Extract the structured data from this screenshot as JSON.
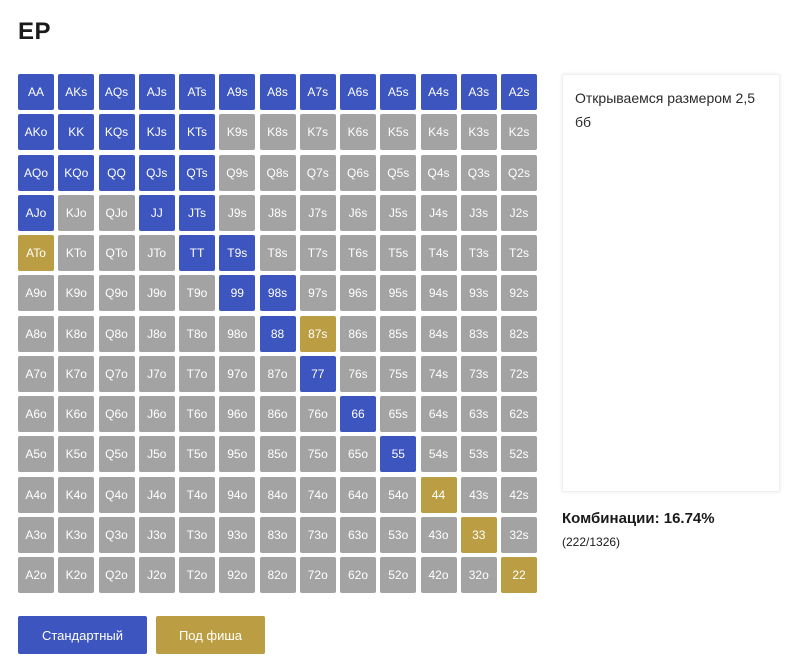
{
  "page": {
    "title": "EP"
  },
  "colors": {
    "raise": "#3d55be",
    "short_stack": "#bb9e43",
    "fold": "#a3a3a3"
  },
  "grid": {
    "rows": [
      [
        [
          "AA",
          "raise"
        ],
        [
          "AKs",
          "raise"
        ],
        [
          "AQs",
          "raise"
        ],
        [
          "AJs",
          "raise"
        ],
        [
          "ATs",
          "raise"
        ],
        [
          "A9s",
          "raise"
        ],
        [
          "A8s",
          "raise"
        ],
        [
          "A7s",
          "raise"
        ],
        [
          "A6s",
          "raise"
        ],
        [
          "A5s",
          "raise"
        ],
        [
          "A4s",
          "raise"
        ],
        [
          "A3s",
          "raise"
        ],
        [
          "A2s",
          "raise"
        ]
      ],
      [
        [
          "AKo",
          "raise"
        ],
        [
          "KK",
          "raise"
        ],
        [
          "KQs",
          "raise"
        ],
        [
          "KJs",
          "raise"
        ],
        [
          "KTs",
          "raise"
        ],
        [
          "K9s",
          "fold"
        ],
        [
          "K8s",
          "fold"
        ],
        [
          "K7s",
          "fold"
        ],
        [
          "K6s",
          "fold"
        ],
        [
          "K5s",
          "fold"
        ],
        [
          "K4s",
          "fold"
        ],
        [
          "K3s",
          "fold"
        ],
        [
          "K2s",
          "fold"
        ]
      ],
      [
        [
          "AQo",
          "raise"
        ],
        [
          "KQo",
          "raise"
        ],
        [
          "QQ",
          "raise"
        ],
        [
          "QJs",
          "raise"
        ],
        [
          "QTs",
          "raise"
        ],
        [
          "Q9s",
          "fold"
        ],
        [
          "Q8s",
          "fold"
        ],
        [
          "Q7s",
          "fold"
        ],
        [
          "Q6s",
          "fold"
        ],
        [
          "Q5s",
          "fold"
        ],
        [
          "Q4s",
          "fold"
        ],
        [
          "Q3s",
          "fold"
        ],
        [
          "Q2s",
          "fold"
        ]
      ],
      [
        [
          "AJo",
          "raise"
        ],
        [
          "KJo",
          "fold"
        ],
        [
          "QJo",
          "fold"
        ],
        [
          "JJ",
          "raise"
        ],
        [
          "JTs",
          "raise"
        ],
        [
          "J9s",
          "fold"
        ],
        [
          "J8s",
          "fold"
        ],
        [
          "J7s",
          "fold"
        ],
        [
          "J6s",
          "fold"
        ],
        [
          "J5s",
          "fold"
        ],
        [
          "J4s",
          "fold"
        ],
        [
          "J3s",
          "fold"
        ],
        [
          "J2s",
          "fold"
        ]
      ],
      [
        [
          "ATo",
          "short"
        ],
        [
          "KTo",
          "fold"
        ],
        [
          "QTo",
          "fold"
        ],
        [
          "JTo",
          "fold"
        ],
        [
          "TT",
          "raise"
        ],
        [
          "T9s",
          "raise"
        ],
        [
          "T8s",
          "fold"
        ],
        [
          "T7s",
          "fold"
        ],
        [
          "T6s",
          "fold"
        ],
        [
          "T5s",
          "fold"
        ],
        [
          "T4s",
          "fold"
        ],
        [
          "T3s",
          "fold"
        ],
        [
          "T2s",
          "fold"
        ]
      ],
      [
        [
          "A9o",
          "fold"
        ],
        [
          "K9o",
          "fold"
        ],
        [
          "Q9o",
          "fold"
        ],
        [
          "J9o",
          "fold"
        ],
        [
          "T9o",
          "fold"
        ],
        [
          "99",
          "raise"
        ],
        [
          "98s",
          "raise"
        ],
        [
          "97s",
          "fold"
        ],
        [
          "96s",
          "fold"
        ],
        [
          "95s",
          "fold"
        ],
        [
          "94s",
          "fold"
        ],
        [
          "93s",
          "fold"
        ],
        [
          "92s",
          "fold"
        ]
      ],
      [
        [
          "A8o",
          "fold"
        ],
        [
          "K8o",
          "fold"
        ],
        [
          "Q8o",
          "fold"
        ],
        [
          "J8o",
          "fold"
        ],
        [
          "T8o",
          "fold"
        ],
        [
          "98o",
          "fold"
        ],
        [
          "88",
          "raise"
        ],
        [
          "87s",
          "short"
        ],
        [
          "86s",
          "fold"
        ],
        [
          "85s",
          "fold"
        ],
        [
          "84s",
          "fold"
        ],
        [
          "83s",
          "fold"
        ],
        [
          "82s",
          "fold"
        ]
      ],
      [
        [
          "A7o",
          "fold"
        ],
        [
          "K7o",
          "fold"
        ],
        [
          "Q7o",
          "fold"
        ],
        [
          "J7o",
          "fold"
        ],
        [
          "T7o",
          "fold"
        ],
        [
          "97o",
          "fold"
        ],
        [
          "87o",
          "fold"
        ],
        [
          "77",
          "raise"
        ],
        [
          "76s",
          "fold"
        ],
        [
          "75s",
          "fold"
        ],
        [
          "74s",
          "fold"
        ],
        [
          "73s",
          "fold"
        ],
        [
          "72s",
          "fold"
        ]
      ],
      [
        [
          "A6o",
          "fold"
        ],
        [
          "K6o",
          "fold"
        ],
        [
          "Q6o",
          "fold"
        ],
        [
          "J6o",
          "fold"
        ],
        [
          "T6o",
          "fold"
        ],
        [
          "96o",
          "fold"
        ],
        [
          "86o",
          "fold"
        ],
        [
          "76o",
          "fold"
        ],
        [
          "66",
          "raise"
        ],
        [
          "65s",
          "fold"
        ],
        [
          "64s",
          "fold"
        ],
        [
          "63s",
          "fold"
        ],
        [
          "62s",
          "fold"
        ]
      ],
      [
        [
          "A5o",
          "fold"
        ],
        [
          "K5o",
          "fold"
        ],
        [
          "Q5o",
          "fold"
        ],
        [
          "J5o",
          "fold"
        ],
        [
          "T5o",
          "fold"
        ],
        [
          "95o",
          "fold"
        ],
        [
          "85o",
          "fold"
        ],
        [
          "75o",
          "fold"
        ],
        [
          "65o",
          "fold"
        ],
        [
          "55",
          "raise"
        ],
        [
          "54s",
          "fold"
        ],
        [
          "53s",
          "fold"
        ],
        [
          "52s",
          "fold"
        ]
      ],
      [
        [
          "A4o",
          "fold"
        ],
        [
          "K4o",
          "fold"
        ],
        [
          "Q4o",
          "fold"
        ],
        [
          "J4o",
          "fold"
        ],
        [
          "T4o",
          "fold"
        ],
        [
          "94o",
          "fold"
        ],
        [
          "84o",
          "fold"
        ],
        [
          "74o",
          "fold"
        ],
        [
          "64o",
          "fold"
        ],
        [
          "54o",
          "fold"
        ],
        [
          "44",
          "short"
        ],
        [
          "43s",
          "fold"
        ],
        [
          "42s",
          "fold"
        ]
      ],
      [
        [
          "A3o",
          "fold"
        ],
        [
          "K3o",
          "fold"
        ],
        [
          "Q3o",
          "fold"
        ],
        [
          "J3o",
          "fold"
        ],
        [
          "T3o",
          "fold"
        ],
        [
          "93o",
          "fold"
        ],
        [
          "83o",
          "fold"
        ],
        [
          "73o",
          "fold"
        ],
        [
          "63o",
          "fold"
        ],
        [
          "53o",
          "fold"
        ],
        [
          "43o",
          "fold"
        ],
        [
          "33",
          "short"
        ],
        [
          "32s",
          "fold"
        ]
      ],
      [
        [
          "A2o",
          "fold"
        ],
        [
          "K2o",
          "fold"
        ],
        [
          "Q2o",
          "fold"
        ],
        [
          "J2o",
          "fold"
        ],
        [
          "T2o",
          "fold"
        ],
        [
          "92o",
          "fold"
        ],
        [
          "82o",
          "fold"
        ],
        [
          "72o",
          "fold"
        ],
        [
          "62o",
          "fold"
        ],
        [
          "52o",
          "fold"
        ],
        [
          "42o",
          "fold"
        ],
        [
          "32o",
          "fold"
        ],
        [
          "22",
          "short"
        ]
      ]
    ]
  },
  "note": {
    "text": "Открываемся размером 2,5 бб"
  },
  "stats": {
    "label": "Комбинации: 16.74%",
    "count": "(222/1326)"
  },
  "buttons": {
    "standard_label": "Стандартный",
    "short_label": "Под фиша"
  }
}
